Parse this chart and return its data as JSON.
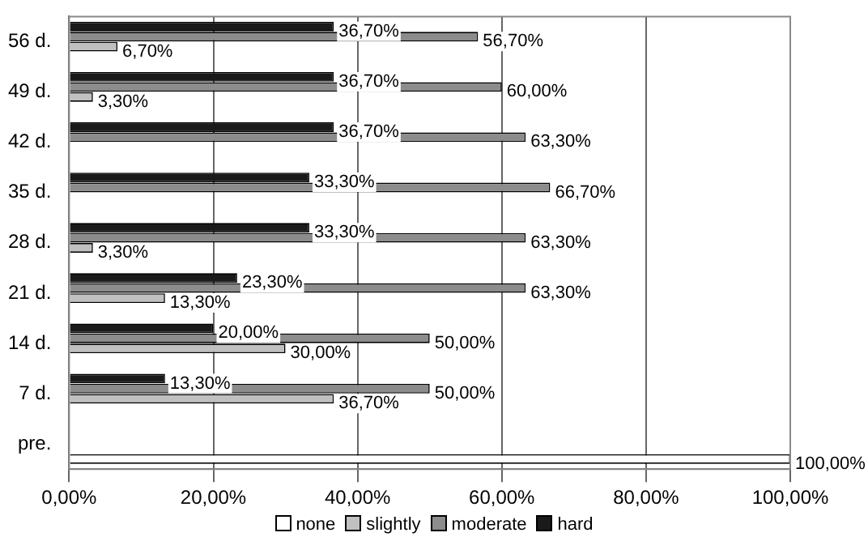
{
  "chart_data": {
    "type": "bar",
    "orientation": "horizontal",
    "categories": [
      "56 d.",
      "49 d.",
      "42 d.",
      "35 d.",
      "28 d.",
      "21 d.",
      "14 d.",
      "7 d.",
      "pre."
    ],
    "series": [
      {
        "name": "none",
        "color": "#ffffff",
        "values": [
          0,
          0,
          0,
          0,
          0,
          0,
          0,
          0,
          100
        ],
        "value_labels": [
          null,
          null,
          null,
          null,
          null,
          null,
          null,
          null,
          "100,00%"
        ]
      },
      {
        "name": "slightly",
        "color": "#c0c0c0",
        "values": [
          6.7,
          3.3,
          0,
          0,
          3.3,
          13.3,
          30,
          36.7,
          0
        ],
        "value_labels": [
          "6,70%",
          "3,30%",
          null,
          null,
          "3,30%",
          "13,30%",
          "30,00%",
          "36,70%",
          null
        ]
      },
      {
        "name": "moderate",
        "color": "#8c8c8c",
        "values": [
          56.7,
          60,
          63.3,
          66.7,
          63.3,
          63.3,
          50,
          50,
          0
        ],
        "value_labels": [
          "56,70%",
          "60,00%",
          "63,30%",
          "66,70%",
          "63,30%",
          "63,30%",
          "50,00%",
          "50,00%",
          null
        ]
      },
      {
        "name": "hard",
        "color": "#1a1a1a",
        "values": [
          36.7,
          36.7,
          36.7,
          33.3,
          33.3,
          23.3,
          20,
          13.3,
          0
        ],
        "value_labels": [
          "36,70%",
          "36,70%",
          "36,70%",
          "33,30%",
          "33,30%",
          "23,30%",
          "20,00%",
          "13,30%",
          null
        ]
      }
    ],
    "xlim": [
      0,
      100
    ],
    "xticks": [
      {
        "value": 0,
        "label": "0,00%"
      },
      {
        "value": 20,
        "label": "20,00%"
      },
      {
        "value": 40,
        "label": "40,00%"
      },
      {
        "value": 60,
        "label": "60,00%"
      },
      {
        "value": 80,
        "label": "80,00%"
      },
      {
        "value": 100,
        "label": "100,00%"
      }
    ],
    "grid": "x",
    "legend": "bottom"
  }
}
